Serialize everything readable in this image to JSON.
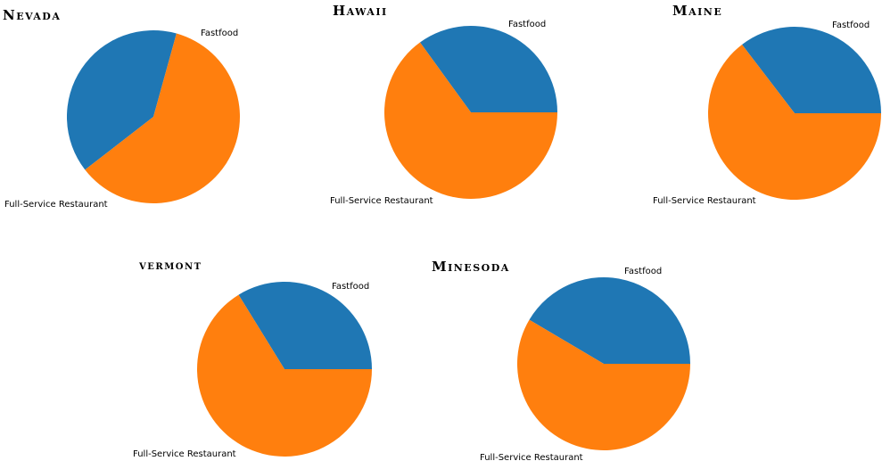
{
  "colors": {
    "Fastfood": "#1f77b4",
    "Full-Service Restaurant": "#ff7f0e"
  },
  "chart_data": [
    {
      "type": "pie",
      "title": "Nevada",
      "categories": [
        "Fastfood",
        "Full-Service Restaurant"
      ],
      "values": [
        39.8,
        60.2
      ]
    },
    {
      "type": "pie",
      "title": "Hawaii",
      "categories": [
        "Fastfood",
        "Full-Service Restaurant"
      ],
      "values": [
        35.0,
        65.0
      ]
    },
    {
      "type": "pie",
      "title": "Maine",
      "categories": [
        "Fastfood",
        "Full-Service Restaurant"
      ],
      "values": [
        35.4,
        64.6
      ]
    },
    {
      "type": "pie",
      "title": "vermont",
      "categories": [
        "Fastfood",
        "Full-Service Restaurant"
      ],
      "values": [
        33.8,
        66.2
      ]
    },
    {
      "type": "pie",
      "title": "Minesoda",
      "categories": [
        "Fastfood",
        "Full-Service Restaurant"
      ],
      "values": [
        41.5,
        58.5
      ]
    }
  ]
}
